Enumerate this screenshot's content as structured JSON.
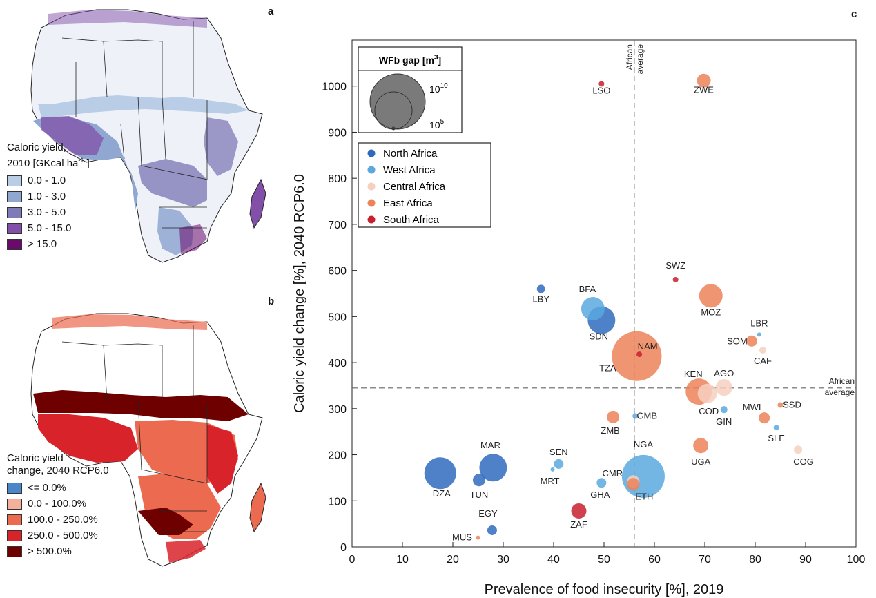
{
  "panels": {
    "a": "a",
    "b": "b",
    "c": "c"
  },
  "map_a": {
    "legend_title_1": "Caloric yield,",
    "legend_title_2": "2010 [GKcal ha",
    "legend_title_sup": "-1",
    "legend_title_end": " ]",
    "classes": [
      {
        "label": "0.0 - 1.0",
        "color": "#b9cde6"
      },
      {
        "label": "1.0 - 3.0",
        "color": "#8fa7d1"
      },
      {
        "label": "3.0 - 5.0",
        "color": "#7f7ab8"
      },
      {
        "label": "5.0 - 15.0",
        "color": "#8250a8"
      },
      {
        "label": "> 15.0",
        "color": "#6a0a6b"
      }
    ]
  },
  "map_b": {
    "legend_title_1": "Caloric yield",
    "legend_title_2": "change, 2040 RCP6.0",
    "classes": [
      {
        "label": "<= 0.0%",
        "color": "#4a86c8"
      },
      {
        "label": "0.0 - 100.0%",
        "color": "#f4b09a"
      },
      {
        "label": "100.0 - 250.0%",
        "color": "#ec6a50"
      },
      {
        "label": "250.0 - 500.0%",
        "color": "#d9232b"
      },
      {
        "label": "> 500.0%",
        "color": "#6e0000"
      }
    ]
  },
  "chart_data": {
    "type": "scatter",
    "xlabel": "Prevalence of food insecurity [%], 2019",
    "ylabel": "Caloric yield change [%], 2040 RCP6.0",
    "xlim": [
      0,
      100
    ],
    "ylim": [
      0,
      1100
    ],
    "xticks": [
      0,
      10,
      20,
      30,
      40,
      50,
      60,
      70,
      80,
      90,
      100
    ],
    "yticks": [
      0,
      100,
      200,
      300,
      400,
      500,
      600,
      700,
      800,
      900,
      1000
    ],
    "african_average_x": 56,
    "african_average_y": 345,
    "avg_label_line1": "African",
    "avg_label_line2": "average",
    "size_legend": {
      "title": "WFb gap [m",
      "title_sup": "3",
      "title_end": "]",
      "large_base": "10",
      "large_exp": "10",
      "small_base": "10",
      "small_exp": "5"
    },
    "regions": [
      {
        "name": "North Africa",
        "color": "#2f6bbd"
      },
      {
        "name": "West Africa",
        "color": "#5aa8de"
      },
      {
        "name": "Central Africa",
        "color": "#f6d0bf"
      },
      {
        "name": "East Africa",
        "color": "#ec8358"
      },
      {
        "name": "South Africa",
        "color": "#c8202e"
      }
    ],
    "points": [
      {
        "code": "LSO",
        "x": 49.5,
        "y": 1005,
        "r": 4,
        "region": 4
      },
      {
        "code": "ZWE",
        "x": 69.8,
        "y": 1012,
        "r": 10,
        "region": 3
      },
      {
        "code": "LBY",
        "x": 37.5,
        "y": 560,
        "r": 6,
        "region": 0
      },
      {
        "code": "BFA",
        "x": 47.8,
        "y": 517,
        "r": 17,
        "region": 1
      },
      {
        "code": "SDN",
        "x": 49.5,
        "y": 492,
        "r": 20,
        "region": 0
      },
      {
        "code": "SWZ",
        "x": 64.2,
        "y": 580,
        "r": 4,
        "region": 4
      },
      {
        "code": "MOZ",
        "x": 71.2,
        "y": 545,
        "r": 17,
        "region": 3
      },
      {
        "code": "TZA",
        "x": 56.5,
        "y": 414,
        "r": 36,
        "region": 3
      },
      {
        "code": "NAM",
        "x": 57.0,
        "y": 418,
        "r": 4,
        "region": 4
      },
      {
        "code": "LBR",
        "x": 80.8,
        "y": 461,
        "r": 3,
        "region": 1
      },
      {
        "code": "SOM",
        "x": 79.3,
        "y": 447,
        "r": 8,
        "region": 3
      },
      {
        "code": "CAF",
        "x": 81.5,
        "y": 427,
        "r": 5,
        "region": 2
      },
      {
        "code": "KEN",
        "x": 68.8,
        "y": 337,
        "r": 19,
        "region": 3
      },
      {
        "code": "COD",
        "x": 70.5,
        "y": 333,
        "r": 14,
        "region": 2
      },
      {
        "code": "AGO",
        "x": 73.8,
        "y": 346,
        "r": 12,
        "region": 2
      },
      {
        "code": "SSD",
        "x": 85.0,
        "y": 308,
        "r": 4,
        "region": 3
      },
      {
        "code": "GMB",
        "x": 56.2,
        "y": 284,
        "r": 4,
        "region": 1
      },
      {
        "code": "GIN",
        "x": 73.8,
        "y": 298,
        "r": 5,
        "region": 1
      },
      {
        "code": "MWI",
        "x": 81.8,
        "y": 280,
        "r": 8,
        "region": 3
      },
      {
        "code": "ZMB",
        "x": 51.8,
        "y": 282,
        "r": 9,
        "region": 3
      },
      {
        "code": "SLE",
        "x": 84.2,
        "y": 259,
        "r": 4,
        "region": 1
      },
      {
        "code": "UGA",
        "x": 69.2,
        "y": 220,
        "r": 11,
        "region": 3
      },
      {
        "code": "COG",
        "x": 88.5,
        "y": 211,
        "r": 6,
        "region": 2
      },
      {
        "code": "DZA",
        "x": 17.5,
        "y": 160,
        "r": 23,
        "region": 0
      },
      {
        "code": "MAR",
        "x": 28.0,
        "y": 172,
        "r": 20,
        "region": 0
      },
      {
        "code": "TUN",
        "x": 25.2,
        "y": 145,
        "r": 9,
        "region": 0
      },
      {
        "code": "SEN",
        "x": 41.0,
        "y": 180,
        "r": 7,
        "region": 1
      },
      {
        "code": "MRT",
        "x": 39.8,
        "y": 168,
        "r": 3,
        "region": 1
      },
      {
        "code": "NGA",
        "x": 57.8,
        "y": 153,
        "r": 31,
        "region": 1
      },
      {
        "code": "CMR",
        "x": 55.8,
        "y": 142,
        "r": 9,
        "region": 2
      },
      {
        "code": "ETH",
        "x": 55.8,
        "y": 136,
        "r": 9,
        "region": 3
      },
      {
        "code": "GHA",
        "x": 49.5,
        "y": 139,
        "r": 7,
        "region": 1
      },
      {
        "code": "ZAF",
        "x": 45.0,
        "y": 78,
        "r": 11,
        "region": 4
      },
      {
        "code": "EGY",
        "x": 27.8,
        "y": 36,
        "r": 7,
        "region": 0
      },
      {
        "code": "MUS",
        "x": 25.0,
        "y": 20,
        "r": 3,
        "region": 3
      }
    ]
  }
}
